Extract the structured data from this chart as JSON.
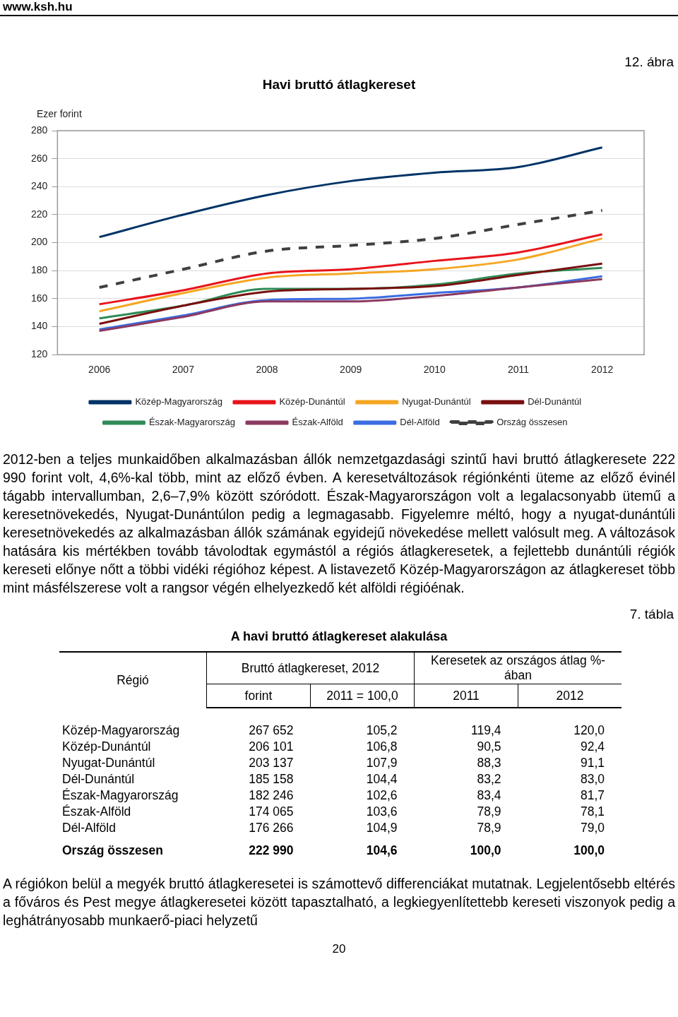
{
  "chart_data": [
    {
      "type": "line",
      "title": "Havi bruttó átlagkereset",
      "ylabel": "Ezer forint",
      "categories": [
        "2006",
        "2007",
        "2008",
        "2009",
        "2010",
        "2011",
        "2012"
      ],
      "series": [
        {
          "name": "Közép-Magyarország",
          "color": "#003366",
          "values": [
            204,
            220,
            234,
            244,
            250,
            254,
            268
          ]
        },
        {
          "name": "Közép-Dunántúl",
          "color": "#e8141c",
          "values": [
            156,
            166,
            178,
            181,
            187,
            193,
            206
          ]
        },
        {
          "name": "Nyugat-Dunántúl",
          "color": "#f5a623",
          "values": [
            151,
            164,
            175,
            178,
            181,
            188,
            203
          ]
        },
        {
          "name": "Dél-Dunántúl",
          "color": "#7a0f0f",
          "values": [
            142,
            155,
            165,
            167,
            169,
            177,
            185
          ]
        },
        {
          "name": "Észak-Magyarország",
          "color": "#2e8b57",
          "values": [
            146,
            155,
            167,
            167,
            170,
            178,
            182
          ]
        },
        {
          "name": "Észak-Alföld",
          "color": "#8b3a62",
          "values": [
            137,
            147,
            158,
            158,
            162,
            168,
            174
          ]
        },
        {
          "name": "Dél-Alföld",
          "color": "#3b6de0",
          "values": [
            138,
            148,
            159,
            160,
            164,
            168,
            176
          ]
        },
        {
          "name": "Ország összesen",
          "color": "#404040",
          "line_style": "dashed",
          "values": [
            168,
            181,
            194,
            198,
            203,
            213,
            223
          ]
        }
      ],
      "ylim": [
        120,
        280
      ],
      "yticks": [
        120,
        140,
        160,
        180,
        200,
        220,
        240,
        260,
        280
      ],
      "grid": "y",
      "legend": "bottom",
      "marker": "none",
      "annotations": [
        "www.ksh.hu",
        "12. ábra",
        "2012-ben a teljes munkaidőben alkalmazásban állók nemzetgazdasági szintű havi bruttó átlagkeresete 222 990 forint volt, 4,6%-kal több, mint az előző évben. A keresetváltozások régiónkénti üteme az előző évinél tágabb intervallumban, 2,6–7,9% között szóródott. Észak-Magyarországon volt a legalacsonyabb ütemű a keresetnövekedés, Nyugat-Dunántúlon pedig a legmagasabb. Figyelemre méltó, hogy a nyugat-dunántúli keresetnövekedés az alkalmazásban állók számának egyidejű növekedése mellett valósult meg. A változások hatására kis mértékben tovább távolodtak egymástól a régiós átlagkeresetek, a fejlettebb dunántúli régiók kereseti előnye nőtt a többi vidéki régióhoz képest. A listavezető Közép-Magyarországon az átlagkereset több mint másfélszerese volt a rangsor végén elhelyezkedő két alföldi régióénak."
      ]
    },
    {
      "type": "other",
      "title": "A havi bruttó átlagkereset alakulása",
      "annotations": [
        "7. tábla",
        "Régió\tBruttó átlagkereset, 2012\tKeresetek az országos átlag %-ában",
        "forint\t2011  = 100,0\t2011\t2012",
        "Közép-Magyarország\t267 652\t105,2\t119,4\t120,0",
        "Közép-Dunántúl\t206 101\t106,8\t90,5\t92,4",
        "Nyugat-Dunántúl\t203 137\t107,9\t88,3\t91,1",
        "Dél-Dunántúl\t185 158\t104,4\t83,2\t83,0",
        "Észak-Magyarország\t182 246\t102,6\t83,4\t81,7",
        "Észak-Alföld\t174 065\t103,6\t78,9\t78,1",
        "Dél-Alföld\t176 266\t104,9\t78,9\t79,0",
        "Ország összesen\t222 990\t104,6\t100,0\t100,0",
        "A régiókon belül a megyék bruttó átlagkeresetei is számottevő differenciákat mutatnak. Legjelentősebb eltérés a főváros és Pest megye átlagkeresetei között tapasztalható, a legkiegyenlítettebb kereseti viszonyok pedig a leghátrányosabb munkaerő-piaci helyzetű",
        "20"
      ]
    }
  ]
}
